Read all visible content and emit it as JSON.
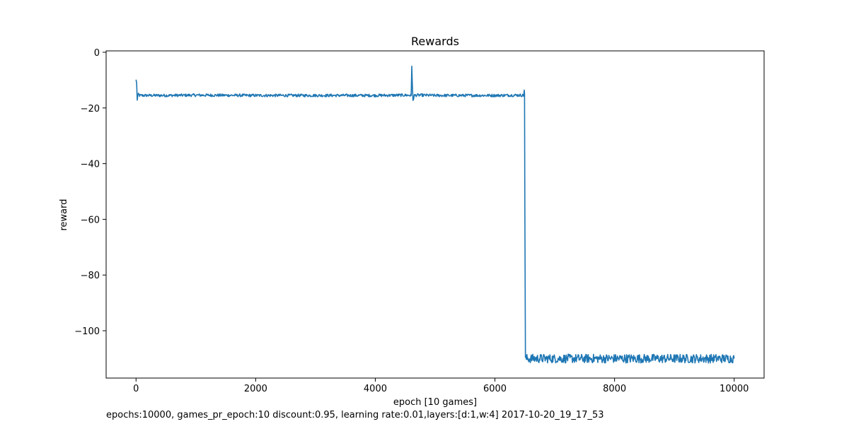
{
  "chart_data": {
    "type": "line",
    "title": "Rewards",
    "xlabel": "epoch [10 games]",
    "ylabel": "reward",
    "xlim": [
      -500,
      10500
    ],
    "ylim": [
      -117,
      0.5
    ],
    "xticks": [
      0,
      2000,
      4000,
      6000,
      8000,
      10000
    ],
    "xtick_labels": [
      "0",
      "2000",
      "4000",
      "6000",
      "8000",
      "10000"
    ],
    "yticks": [
      0,
      -20,
      -40,
      -60,
      -80,
      -100
    ],
    "ytick_labels": [
      "0",
      "−20",
      "−40",
      "−60",
      "−80",
      "−100"
    ],
    "grid": false,
    "legend": "none",
    "series": [
      {
        "color": "#1f77b4",
        "x": [
          0,
          10,
          20,
          30,
          40,
          60,
          100,
          500,
          1000,
          2000,
          3000,
          4000,
          4500,
          4600,
          4610,
          4620,
          4630,
          4650,
          4700,
          5000,
          6000,
          6400,
          6480,
          6490,
          6495,
          6500,
          6510,
          6600,
          7000,
          8000,
          9000,
          10000
        ],
        "y": [
          -10,
          -11,
          -17,
          -15.5,
          -15.2,
          -15.5,
          -15.5,
          -15.5,
          -15.4,
          -15.5,
          -15.5,
          -15.5,
          -15.4,
          -15.5,
          -5,
          -12,
          -17.5,
          -15.5,
          -15.4,
          -15.5,
          -15.5,
          -15.4,
          -15.5,
          -13.5,
          -15,
          -55,
          -110,
          -110,
          -110,
          -110,
          -110,
          -110
        ]
      }
    ],
    "caption": "epochs:10000, games_pr_epoch:10 discount:0.95, learning rate:0.01,layers:[d:1,w:4] 2017-10-20_19_17_53"
  }
}
